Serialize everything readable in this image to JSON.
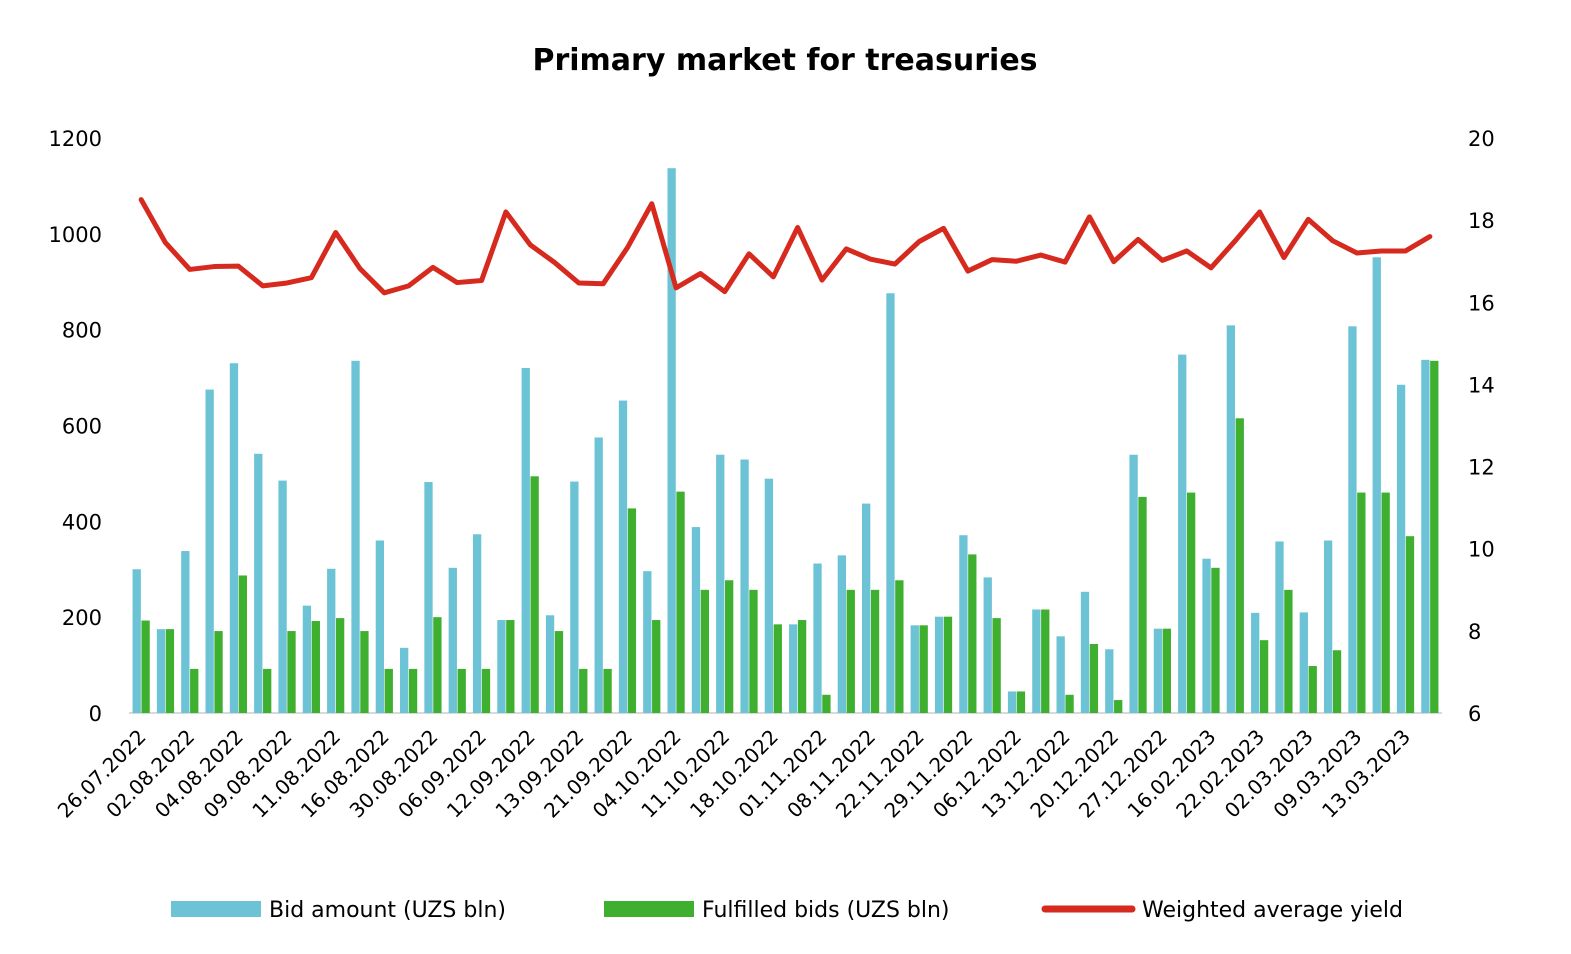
{
  "chart_data": {
    "type": "bar+line",
    "title": "Primary market for treasuries",
    "xlabel": "",
    "ylabel": "",
    "y2label": "",
    "ylim": [
      0,
      1200
    ],
    "y2lim": [
      6,
      20
    ],
    "yticks": [
      0,
      200,
      400,
      600,
      800,
      1000,
      1200
    ],
    "y2ticks": [
      6,
      8,
      10,
      12,
      14,
      16,
      18,
      20
    ],
    "x_tick_labels": [
      "26.07.2022",
      "02.08.2022",
      "04.08.2022",
      "09.08.2022",
      "11.08.2022",
      "16.08.2022",
      "30.08.2022",
      "06.09.2022",
      "12.09.2022",
      "13.09.2022",
      "21.09.2022",
      "04.10.2022",
      "11.10.2022",
      "18.10.2022",
      "01.11.2022",
      "08.11.2022",
      "22.11.2022",
      "29.11.2022",
      "06.12.2022",
      "13.12.2022",
      "20.12.2022",
      "27.12.2022",
      "16.02.2023",
      "22.02.2023",
      "02.03.2023",
      "09.03.2023",
      "13.03.2023"
    ],
    "tick_every": 2,
    "series": [
      {
        "name": "Bid amount (UZS bln)",
        "type": "bar",
        "axis": "left",
        "color": "#6CC3D5",
        "values": [
          300,
          175,
          338,
          675,
          730,
          541,
          485,
          224,
          301,
          735,
          360,
          136,
          482,
          303,
          373,
          194,
          720,
          204,
          483,
          575,
          652,
          296,
          1137,
          388,
          539,
          529,
          489,
          185,
          312,
          329,
          437,
          876,
          183,
          201,
          371,
          283,
          45,
          216,
          160,
          253,
          133,
          539,
          176,
          748,
          322,
          809,
          209,
          358,
          210,
          360,
          807,
          951,
          685,
          737
        ]
      },
      {
        "name": "Fulfilled bids (UZS bln)",
        "type": "bar",
        "axis": "left",
        "color": "#3EAF2E",
        "values": [
          193,
          175,
          92,
          171,
          287,
          92,
          171,
          192,
          198,
          171,
          92,
          92,
          200,
          92,
          92,
          194,
          494,
          171,
          92,
          92,
          427,
          194,
          462,
          257,
          277,
          257,
          185,
          194,
          38,
          257,
          257,
          277,
          183,
          201,
          331,
          198,
          45,
          216,
          38,
          144,
          27,
          451,
          176,
          460,
          303,
          615,
          152,
          257,
          98,
          131,
          460,
          460,
          369,
          735
        ]
      },
      {
        "name": "Weighted average yield",
        "type": "line",
        "axis": "right",
        "color": "#D62A1F",
        "values": [
          18.5,
          17.45,
          16.8,
          16.87,
          16.88,
          16.4,
          16.47,
          16.6,
          17.7,
          16.82,
          16.23,
          16.4,
          16.85,
          16.48,
          16.53,
          18.2,
          17.4,
          16.97,
          16.47,
          16.45,
          17.33,
          18.4,
          16.35,
          16.7,
          16.26,
          17.18,
          16.62,
          17.82,
          16.54,
          17.3,
          17.05,
          16.93,
          17.48,
          17.8,
          16.76,
          17.04,
          17.0,
          17.15,
          16.98,
          18.08,
          16.99,
          17.53,
          17.02,
          17.25,
          16.84,
          17.5,
          18.2,
          17.09,
          18.02,
          17.5,
          17.2,
          17.25,
          17.25,
          17.6
        ]
      }
    ],
    "legend_position": "bottom",
    "grid": false
  }
}
